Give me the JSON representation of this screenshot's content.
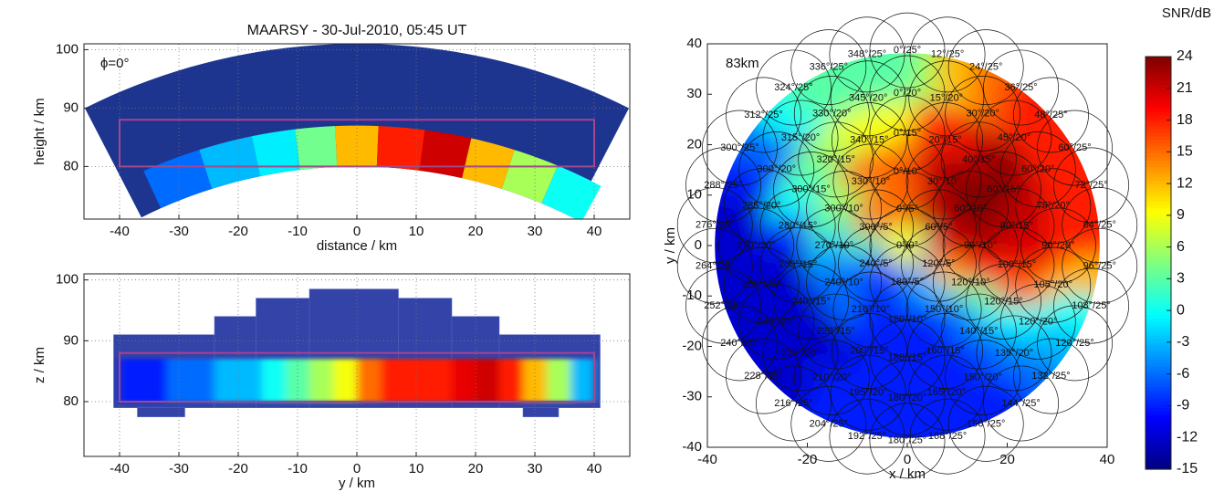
{
  "chart_data": [
    {
      "type": "fan",
      "title": "MAARSY - 30-Jul-2010, 05:45 UT",
      "annotation": "ϕ=0°",
      "xlabel": "distance / km",
      "ylabel": "height / km",
      "xlim": [
        -46,
        46
      ],
      "ylim": [
        71,
        101
      ],
      "xticks": [
        -40,
        -30,
        -20,
        -10,
        0,
        10,
        20,
        30,
        40
      ],
      "yticks": [
        80,
        90,
        100
      ],
      "grid": true,
      "fan": {
        "range": [
          80,
          101
        ],
        "zenith": [
          -27,
          27
        ]
      },
      "layer": [
        80,
        87
      ],
      "box": {
        "x": [
          -40,
          40
        ],
        "y": [
          80,
          88
        ],
        "color": "#a8428f"
      },
      "x": [
        -30,
        -21,
        -13,
        -7,
        0,
        7,
        15,
        22,
        29,
        36
      ],
      "values": [
        -6,
        -3,
        -1,
        4,
        12,
        18,
        21,
        12,
        6,
        0
      ]
    },
    {
      "type": "coverage",
      "xlabel": "y / km",
      "ylabel": "z / km",
      "xlim": [
        -46,
        46
      ],
      "ylim": [
        71,
        101
      ],
      "xticks": [
        -40,
        -30,
        -20,
        -10,
        0,
        10,
        20,
        30,
        40
      ],
      "yticks": [
        80,
        90,
        100
      ],
      "grid": true,
      "steps": [
        [
          -41,
          -24,
          79,
          91
        ],
        [
          -24,
          -17,
          79,
          94
        ],
        [
          -17,
          -8,
          79,
          97
        ],
        [
          -8,
          7,
          79,
          98.5
        ],
        [
          7,
          16,
          79,
          97
        ],
        [
          16,
          24,
          79,
          94
        ],
        [
          24,
          41,
          79,
          91
        ],
        [
          -37,
          -29,
          77.5,
          79
        ],
        [
          28,
          34,
          77.5,
          79
        ]
      ],
      "layer": [
        80,
        87
      ],
      "box": {
        "x": [
          -40,
          40
        ],
        "y": [
          80,
          88
        ],
        "color": "#a8428f"
      },
      "x": [
        -38,
        -34,
        -30,
        -26,
        -22,
        -18,
        -14,
        -10,
        -6,
        -2,
        2,
        6,
        10,
        14,
        18,
        22,
        26,
        30,
        34,
        38
      ],
      "values": [
        -9,
        -9,
        -6,
        -6,
        -3,
        -3,
        0,
        3,
        6,
        9,
        15,
        18,
        18,
        18,
        20,
        21,
        18,
        12,
        6,
        -3
      ]
    },
    {
      "type": "beam_map",
      "xlabel": "x / km",
      "ylabel": "y / km",
      "xlim": [
        -40,
        40
      ],
      "ylim": [
        -40,
        40
      ],
      "xticks": [
        -40,
        -20,
        0,
        20,
        40
      ],
      "yticks": [
        -40,
        -30,
        -20,
        -10,
        0,
        10,
        20,
        30,
        40
      ],
      "grid": false,
      "altitude": {
        "value": 83,
        "label": "83km"
      },
      "field_radius": 38.5,
      "beam_radius": 7.5,
      "beams": [
        {
          "label": "0°/0°",
          "azimuth": 0,
          "zenith": 0,
          "snr": 15
        },
        {
          "label": "0°/5°",
          "azimuth": 0,
          "zenith": 5,
          "snr": 18
        },
        {
          "label": "60°/5°",
          "azimuth": 60,
          "zenith": 5,
          "snr": 21
        },
        {
          "label": "120°/5°",
          "azimuth": 120,
          "zenith": 5,
          "snr": 18
        },
        {
          "label": "180°/5°",
          "azimuth": 180,
          "zenith": 5,
          "snr": 0
        },
        {
          "label": "240°/5°",
          "azimuth": 240,
          "zenith": 5,
          "snr": -6
        },
        {
          "label": "300°/5°",
          "azimuth": 300,
          "zenith": 5,
          "snr": 9
        },
        {
          "label": "0°/10°",
          "azimuth": 0,
          "zenith": 10,
          "snr": 21
        },
        {
          "label": "30°/10°",
          "azimuth": 30,
          "zenith": 10,
          "snr": 21
        },
        {
          "label": "60°/10°",
          "azimuth": 60,
          "zenith": 10,
          "snr": 22
        },
        {
          "label": "90°/10°",
          "azimuth": 90,
          "zenith": 10,
          "snr": 22
        },
        {
          "label": "120°/10°",
          "azimuth": 120,
          "zenith": 10,
          "snr": 20
        },
        {
          "label": "150°/10°",
          "azimuth": 150,
          "zenith": 10,
          "snr": 12
        },
        {
          "label": "180°/10°",
          "azimuth": 180,
          "zenith": 10,
          "snr": -3
        },
        {
          "label": "210°/10°",
          "azimuth": 210,
          "zenith": 10,
          "snr": -6
        },
        {
          "label": "240°/10°",
          "azimuth": 240,
          "zenith": 10,
          "snr": -9
        },
        {
          "label": "270°/10°",
          "azimuth": 270,
          "zenith": 10,
          "snr": -6
        },
        {
          "label": "300°/10°",
          "azimuth": 300,
          "zenith": 10,
          "snr": 3
        },
        {
          "label": "330°/10°",
          "azimuth": 330,
          "zenith": 10,
          "snr": 15
        },
        {
          "label": "0°/15°",
          "azimuth": 0,
          "zenith": 15,
          "snr": 18
        },
        {
          "label": "20°/15°",
          "azimuth": 20,
          "zenith": 15,
          "snr": 20
        },
        {
          "label": "40°/15°",
          "azimuth": 40,
          "zenith": 15,
          "snr": 22
        },
        {
          "label": "60°/15°",
          "azimuth": 60,
          "zenith": 15,
          "snr": 24
        },
        {
          "label": "80°/15°",
          "azimuth": 80,
          "zenith": 15,
          "snr": 24
        },
        {
          "label": "100°/15°",
          "azimuth": 100,
          "zenith": 15,
          "snr": 22
        },
        {
          "label": "120°/15°",
          "azimuth": 120,
          "zenith": 15,
          "snr": 18
        },
        {
          "label": "140°/15°",
          "azimuth": 140,
          "zenith": 15,
          "snr": 3
        },
        {
          "label": "160°/15°",
          "azimuth": 160,
          "zenith": 15,
          "snr": -6
        },
        {
          "label": "180°/15°",
          "azimuth": 180,
          "zenith": 15,
          "snr": -9
        },
        {
          "label": "200°/15°",
          "azimuth": 200,
          "zenith": 15,
          "snr": -9
        },
        {
          "label": "220°/15°",
          "azimuth": 220,
          "zenith": 15,
          "snr": -9
        },
        {
          "label": "240°/15°",
          "azimuth": 240,
          "zenith": 15,
          "snr": -6
        },
        {
          "label": "260°/15°",
          "azimuth": 260,
          "zenith": 15,
          "snr": -6
        },
        {
          "label": "280°/15°",
          "azimuth": 280,
          "zenith": 15,
          "snr": -3
        },
        {
          "label": "300°/15°",
          "azimuth": 300,
          "zenith": 15,
          "snr": 3
        },
        {
          "label": "320°/15°",
          "azimuth": 320,
          "zenith": 15,
          "snr": 6
        },
        {
          "label": "340°/15°",
          "azimuth": 340,
          "zenith": 15,
          "snr": 15
        },
        {
          "label": "0°/20°",
          "azimuth": 0,
          "zenith": 20,
          "snr": 12
        },
        {
          "label": "15°/20°",
          "azimuth": 15,
          "zenith": 20,
          "snr": 18
        },
        {
          "label": "30°/20°",
          "azimuth": 30,
          "zenith": 20,
          "snr": 18
        },
        {
          "label": "45°/20°",
          "azimuth": 45,
          "zenith": 20,
          "snr": 21
        },
        {
          "label": "60°/20°",
          "azimuth": 60,
          "zenith": 20,
          "snr": 24
        },
        {
          "label": "75°/20°",
          "azimuth": 75,
          "zenith": 20,
          "snr": 22
        },
        {
          "label": "90°/20°",
          "azimuth": 90,
          "zenith": 20,
          "snr": 21
        },
        {
          "label": "105°/20°",
          "azimuth": 105,
          "zenith": 20,
          "snr": 20
        },
        {
          "label": "120°/20°",
          "azimuth": 120,
          "zenith": 20,
          "snr": 15
        },
        {
          "label": "135°/20°",
          "azimuth": 135,
          "zenith": 20,
          "snr": 0
        },
        {
          "label": "150°/20°",
          "azimuth": 150,
          "zenith": 20,
          "snr": -6
        },
        {
          "label": "165°/20°",
          "azimuth": 165,
          "zenith": 20,
          "snr": -9
        },
        {
          "label": "180°/20°",
          "azimuth": 180,
          "zenith": 20,
          "snr": -9
        },
        {
          "label": "195°/20°",
          "azimuth": 195,
          "zenith": 20,
          "snr": -9
        },
        {
          "label": "210°/20°",
          "azimuth": 210,
          "zenith": 20,
          "snr": -9
        },
        {
          "label": "225°/20°",
          "azimuth": 225,
          "zenith": 20,
          "snr": -12
        },
        {
          "label": "240°/20°",
          "azimuth": 240,
          "zenith": 20,
          "snr": -12
        },
        {
          "label": "255°/20°",
          "azimuth": 255,
          "zenith": 20,
          "snr": -12
        },
        {
          "label": "270°/20°",
          "azimuth": 270,
          "zenith": 20,
          "snr": -12
        },
        {
          "label": "285°/20°",
          "azimuth": 285,
          "zenith": 20,
          "snr": -9
        },
        {
          "label": "300°/20°",
          "azimuth": 300,
          "zenith": 20,
          "snr": 0
        },
        {
          "label": "315°/20°",
          "azimuth": 315,
          "zenith": 20,
          "snr": 3
        },
        {
          "label": "330°/20°",
          "azimuth": 330,
          "zenith": 20,
          "snr": 6
        },
        {
          "label": "345°/20°",
          "azimuth": 345,
          "zenith": 20,
          "snr": 9
        },
        {
          "label": "0°/25°",
          "azimuth": 0,
          "zenith": 25,
          "snr": 3
        },
        {
          "label": "12°/25°",
          "azimuth": 12,
          "zenith": 25,
          "snr": 6
        },
        {
          "label": "24°/25°",
          "azimuth": 24,
          "zenith": 25,
          "snr": 12
        },
        {
          "label": "36°/25°",
          "azimuth": 36,
          "zenith": 25,
          "snr": 15
        },
        {
          "label": "48°/25°",
          "azimuth": 48,
          "zenith": 25,
          "snr": 18
        },
        {
          "label": "60°/25°",
          "azimuth": 60,
          "zenith": 25,
          "snr": 18
        },
        {
          "label": "72°/25°",
          "azimuth": 72,
          "zenith": 25,
          "snr": 18
        },
        {
          "label": "84°/25°",
          "azimuth": 84,
          "zenith": 25,
          "snr": 18
        },
        {
          "label": "96°/25°",
          "azimuth": 96,
          "zenith": 25,
          "snr": 18
        },
        {
          "label": "108°/25°",
          "azimuth": 108,
          "zenith": 25,
          "snr": 12
        },
        {
          "label": "120°/25°",
          "azimuth": 120,
          "zenith": 25,
          "snr": 0
        },
        {
          "label": "132°/25°",
          "azimuth": 132,
          "zenith": 25,
          "snr": -3
        },
        {
          "label": "144°/25°",
          "azimuth": 144,
          "zenith": 25,
          "snr": -6
        },
        {
          "label": "156°/25°",
          "azimuth": 156,
          "zenith": 25,
          "snr": -9
        },
        {
          "label": "168°/25°",
          "azimuth": 168,
          "zenith": 25,
          "snr": -9
        },
        {
          "label": "180°/25°",
          "azimuth": 180,
          "zenith": 25,
          "snr": -9
        },
        {
          "label": "192°/25°",
          "azimuth": 192,
          "zenith": 25,
          "snr": -9
        },
        {
          "label": "204°/25°",
          "azimuth": 204,
          "zenith": 25,
          "snr": -9
        },
        {
          "label": "216°/25°",
          "azimuth": 216,
          "zenith": 25,
          "snr": -9
        },
        {
          "label": "228°/25°",
          "azimuth": 228,
          "zenith": 25,
          "snr": -12
        },
        {
          "label": "240°/25°",
          "azimuth": 240,
          "zenith": 25,
          "snr": -12
        },
        {
          "label": "252°/25°",
          "azimuth": 252,
          "zenith": 25,
          "snr": -12
        },
        {
          "label": "264°/25°",
          "azimuth": 264,
          "zenith": 25,
          "snr": -12
        },
        {
          "label": "276°/25°",
          "azimuth": 276,
          "zenith": 25,
          "snr": -12
        },
        {
          "label": "288°/25°",
          "azimuth": 288,
          "zenith": 25,
          "snr": -12
        },
        {
          "label": "300°/25°",
          "azimuth": 300,
          "zenith": 25,
          "snr": -9
        },
        {
          "label": "312°/25°",
          "azimuth": 312,
          "zenith": 25,
          "snr": -6
        },
        {
          "label": "324°/25°",
          "azimuth": 324,
          "zenith": 25,
          "snr": 0
        },
        {
          "label": "336°/25°",
          "azimuth": 336,
          "zenith": 25,
          "snr": 3
        },
        {
          "label": "348°/25°",
          "azimuth": 348,
          "zenith": 25,
          "snr": 3
        }
      ]
    },
    {
      "type": "colorbar",
      "label": "SNR/dB",
      "clim": [
        -15,
        24
      ],
      "ticks": [
        -15,
        -12,
        -9,
        -6,
        -3,
        0,
        3,
        6,
        9,
        12,
        15,
        18,
        21,
        24
      ]
    }
  ]
}
